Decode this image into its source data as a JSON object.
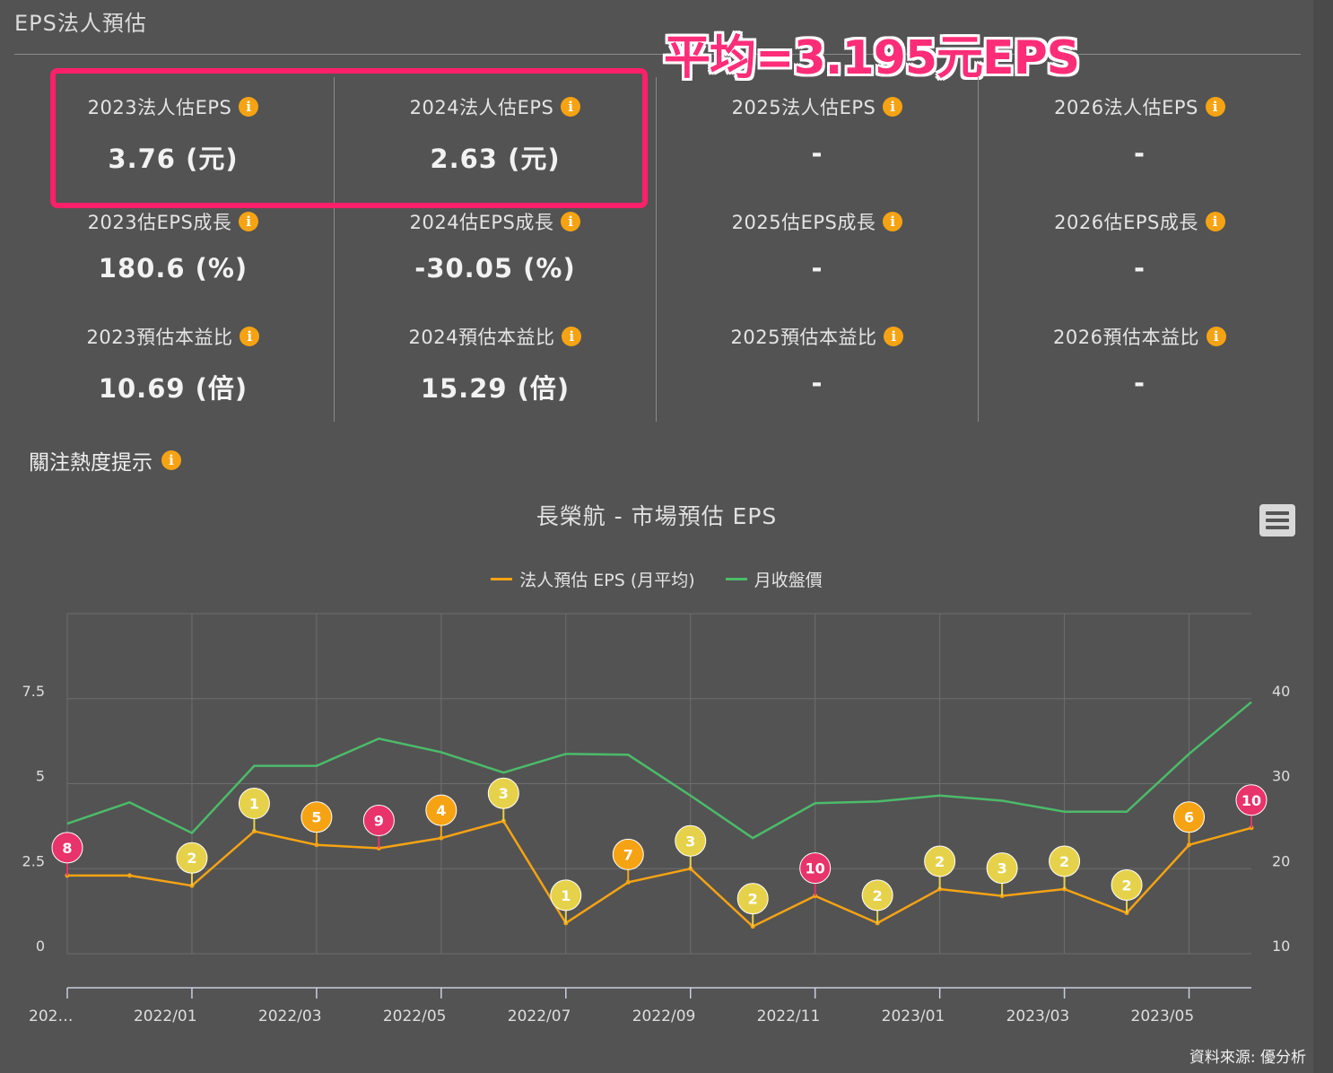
{
  "panel": {
    "title": "EPS法人預估"
  },
  "annotation": {
    "text": "平均=3.195元EPS"
  },
  "columns": [
    {
      "eps_label": "2023法人估EPS",
      "eps_value": "3.76 (元)",
      "growth_label": "2023估EPS成長",
      "growth_value": "180.6 (%)",
      "pe_label": "2023預估本益比",
      "pe_value": "10.69 (倍)"
    },
    {
      "eps_label": "2024法人估EPS",
      "eps_value": "2.63 (元)",
      "growth_label": "2024估EPS成長",
      "growth_value": "-30.05 (%)",
      "pe_label": "2024預估本益比",
      "pe_value": "15.29 (倍)"
    },
    {
      "eps_label": "2025法人估EPS",
      "eps_value": "-",
      "growth_label": "2025估EPS成長",
      "growth_value": "-",
      "pe_label": "2025預估本益比",
      "pe_value": "-"
    },
    {
      "eps_label": "2026法人估EPS",
      "eps_value": "-",
      "growth_label": "2026估EPS成長",
      "growth_value": "-",
      "pe_label": "2026預估本益比",
      "pe_value": "-"
    }
  ],
  "info_icon": "i",
  "attention": {
    "label": "關注熱度提示"
  },
  "credit": "資料來源: 優分析",
  "colors": {
    "eps": "#f6a313",
    "price": "#4cbb6a",
    "pin_pink": "#e8336b",
    "pin_orange": "#f6a313",
    "pin_yellow": "#e6d24a"
  },
  "chart_data": {
    "type": "line",
    "title": "長榮航 - 市場預估 EPS",
    "x": [
      "2021/11",
      "2021/12",
      "2022/01",
      "2022/02",
      "2022/03",
      "2022/04",
      "2022/05",
      "2022/06",
      "2022/07",
      "2022/08",
      "2022/09",
      "2022/10",
      "2022/11",
      "2022/12",
      "2023/01",
      "2023/02",
      "2023/03",
      "2023/04",
      "2023/05",
      "2023/06"
    ],
    "x_tick_labels": [
      "202…",
      "2022/01",
      "2022/03",
      "2022/05",
      "2022/07",
      "2022/09",
      "2022/11",
      "2023/01",
      "2023/03",
      "2023/05"
    ],
    "series": [
      {
        "name": "法人預估 EPS (月平均)",
        "axis": "left",
        "values": [
          2.3,
          2.3,
          2.0,
          3.6,
          3.2,
          3.1,
          3.4,
          3.9,
          0.9,
          2.1,
          2.5,
          0.8,
          1.7,
          0.9,
          1.9,
          1.7,
          1.9,
          1.2,
          3.2,
          3.7
        ]
      },
      {
        "name": "月收盤價",
        "axis": "right",
        "values": [
          25.3,
          27.8,
          24.2,
          32.1,
          32.1,
          35.3,
          33.7,
          31.3,
          33.5,
          33.4,
          28.6,
          23.6,
          27.7,
          27.9,
          28.6,
          28.0,
          26.7,
          26.7,
          33.5,
          39.6
        ]
      }
    ],
    "markers": [
      {
        "x": "2021/11",
        "label": "8",
        "color": "pink"
      },
      {
        "x": "2022/01",
        "label": "2",
        "color": "yellow"
      },
      {
        "x": "2022/02",
        "label": "1",
        "color": "yellow"
      },
      {
        "x": "2022/03",
        "label": "5",
        "color": "orange"
      },
      {
        "x": "2022/04",
        "label": "9",
        "color": "pink"
      },
      {
        "x": "2022/05",
        "label": "4",
        "color": "orange"
      },
      {
        "x": "2022/06",
        "label": "3",
        "color": "yellow"
      },
      {
        "x": "2022/07",
        "label": "1",
        "color": "yellow"
      },
      {
        "x": "2022/08",
        "label": "7",
        "color": "orange"
      },
      {
        "x": "2022/09",
        "label": "3",
        "color": "yellow"
      },
      {
        "x": "2022/10",
        "label": "2",
        "color": "yellow"
      },
      {
        "x": "2022/11",
        "label": "10",
        "color": "pink"
      },
      {
        "x": "2022/12",
        "label": "2",
        "color": "yellow"
      },
      {
        "x": "2023/01",
        "label": "2",
        "color": "yellow"
      },
      {
        "x": "2023/02",
        "label": "3",
        "color": "yellow"
      },
      {
        "x": "2023/03",
        "label": "2",
        "color": "yellow"
      },
      {
        "x": "2023/04",
        "label": "2",
        "color": "yellow"
      },
      {
        "x": "2023/05",
        "label": "6",
        "color": "orange"
      },
      {
        "x": "2023/06",
        "label": "10",
        "color": "pink"
      }
    ],
    "y_left": {
      "ticks": [
        "0",
        "2.5",
        "5",
        "7.5"
      ],
      "range": [
        0,
        10
      ]
    },
    "y_right": {
      "ticks": [
        "10",
        "20",
        "30",
        "40"
      ],
      "range": [
        10,
        50
      ]
    },
    "grid": true,
    "legend": "top"
  }
}
